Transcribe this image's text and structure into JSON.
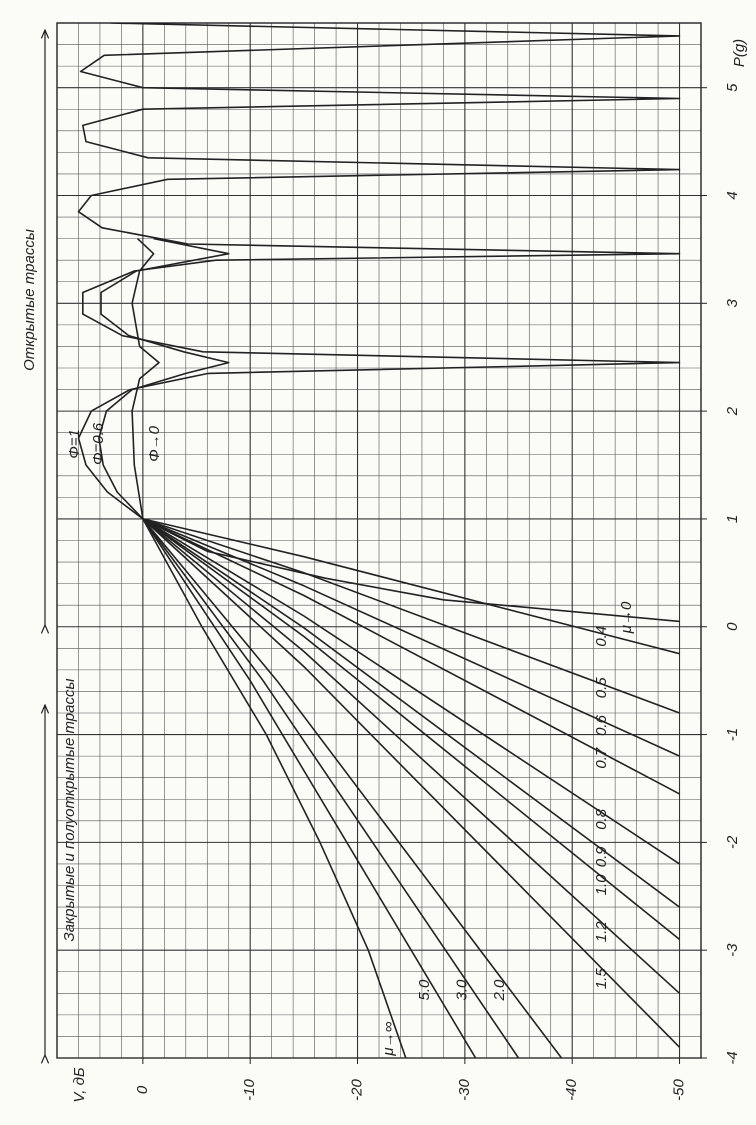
{
  "chart_data": {
    "type": "line",
    "x_label": "P(g)",
    "y_label": "V, дБ",
    "annotations": [
      "Открытые трассы",
      "Закрытые и полуоткрытые трассы"
    ],
    "xlim": [
      -4,
      5.6
    ],
    "ylim": [
      -52,
      8
    ],
    "xticks": [
      -4,
      -3,
      -2,
      -1,
      0,
      1,
      2,
      3,
      4,
      5
    ],
    "yticks": [
      0,
      -10,
      -20,
      -30,
      -40,
      -50
    ],
    "grid": true,
    "series": [
      {
        "name": "Φ=1",
        "color": "#222222",
        "x": [
          1,
          1.25,
          1.5,
          1.75,
          2,
          2.2,
          2.35,
          2.45,
          2.55,
          2.7,
          2.9,
          3.1,
          3.3,
          3.4,
          3.46,
          3.55,
          3.7,
          3.85,
          4,
          4.15,
          4.24,
          4.35,
          4.5,
          4.65,
          4.8,
          4.9,
          5,
          5.15,
          5.3,
          5.48,
          5.6
        ],
        "values": [
          0,
          3.3,
          5.3,
          6,
          4.8,
          1.2,
          -6.1,
          -50,
          -5.6,
          1.9,
          5.6,
          5.6,
          0.8,
          -6.8,
          -50,
          -4.2,
          3.8,
          6,
          4.8,
          -2.3,
          -50,
          -0.5,
          5.3,
          5.6,
          0,
          -50,
          0,
          5.8,
          3.6,
          -50,
          3
        ]
      },
      {
        "name": "Φ=0.6",
        "color": "#222222",
        "x": [
          1,
          1.25,
          1.5,
          1.75,
          2,
          2.2,
          2.35,
          2.45,
          2.55,
          2.7,
          2.9,
          3.1,
          3.3,
          3.46,
          3.6
        ],
        "values": [
          0,
          2.4,
          3.7,
          4.1,
          3.4,
          1,
          -4,
          -8,
          -3.8,
          1.3,
          3.9,
          3.9,
          0.6,
          -8,
          -1
        ]
      },
      {
        "name": "Φ→0",
        "color": "#222222",
        "x": [
          1,
          1.5,
          2,
          2.3,
          2.45,
          2.6,
          3,
          3.3,
          3.46,
          3.6
        ],
        "values": [
          0,
          0.8,
          1,
          0.3,
          -1.5,
          0.3,
          1,
          0.3,
          -1,
          0.5
        ]
      },
      {
        "name": "μ→0",
        "color": "#222222",
        "x": [
          1,
          0.7,
          0.45,
          0.25,
          0.05
        ],
        "values": [
          0,
          -6,
          -17,
          -28,
          -50
        ]
      },
      {
        "name": "0.4",
        "color": "#222222",
        "x": [
          1,
          0.65,
          -0.25
        ],
        "values": [
          0,
          -15,
          -50
        ]
      },
      {
        "name": "0.5",
        "color": "#222222",
        "x": [
          1,
          0.5,
          -0.8
        ],
        "values": [
          0,
          -15,
          -50
        ]
      },
      {
        "name": "0.6",
        "color": "#222222",
        "x": [
          1,
          0.38,
          -1.2
        ],
        "values": [
          0,
          -15,
          -50
        ]
      },
      {
        "name": "0.7",
        "color": "#222222",
        "x": [
          1,
          0.29,
          -1.55
        ],
        "values": [
          0,
          -15,
          -50
        ]
      },
      {
        "name": "0.8",
        "color": "#222222",
        "x": [
          1,
          0.1,
          -2.2
        ],
        "values": [
          0,
          -15,
          -50
        ]
      },
      {
        "name": "0.9",
        "color": "#222222",
        "x": [
          1,
          -0.01,
          -2.6
        ],
        "values": [
          0,
          -15,
          -50
        ]
      },
      {
        "name": "1.0",
        "color": "#222222",
        "x": [
          1,
          -0.09,
          -2.9
        ],
        "values": [
          0,
          -15,
          -50
        ]
      },
      {
        "name": "1.2",
        "color": "#222222",
        "x": [
          1,
          -0.23,
          -3.4
        ],
        "values": [
          0,
          -15,
          -50
        ]
      },
      {
        "name": "1.5",
        "color": "#222222",
        "x": [
          1,
          -0.37,
          -3.9
        ],
        "values": [
          0,
          -15,
          -50
        ]
      },
      {
        "name": "2.0",
        "color": "#222222",
        "x": [
          1,
          -0.5,
          -4
        ],
        "values": [
          0,
          -12.5,
          -39
        ]
      },
      {
        "name": "3.0",
        "color": "#222222",
        "x": [
          1,
          -0.5,
          -4
        ],
        "values": [
          0,
          -11.2,
          -35
        ]
      },
      {
        "name": "5.0",
        "color": "#222222",
        "x": [
          1,
          -0.5,
          -4
        ],
        "values": [
          0,
          -10,
          -31
        ]
      },
      {
        "name": "μ→∞",
        "color": "#222222",
        "x": [
          1,
          0,
          -1,
          -2,
          -3,
          -4
        ],
        "values": [
          0,
          -5.5,
          -11.5,
          -16.5,
          -21,
          -24.5
        ]
      }
    ]
  }
}
